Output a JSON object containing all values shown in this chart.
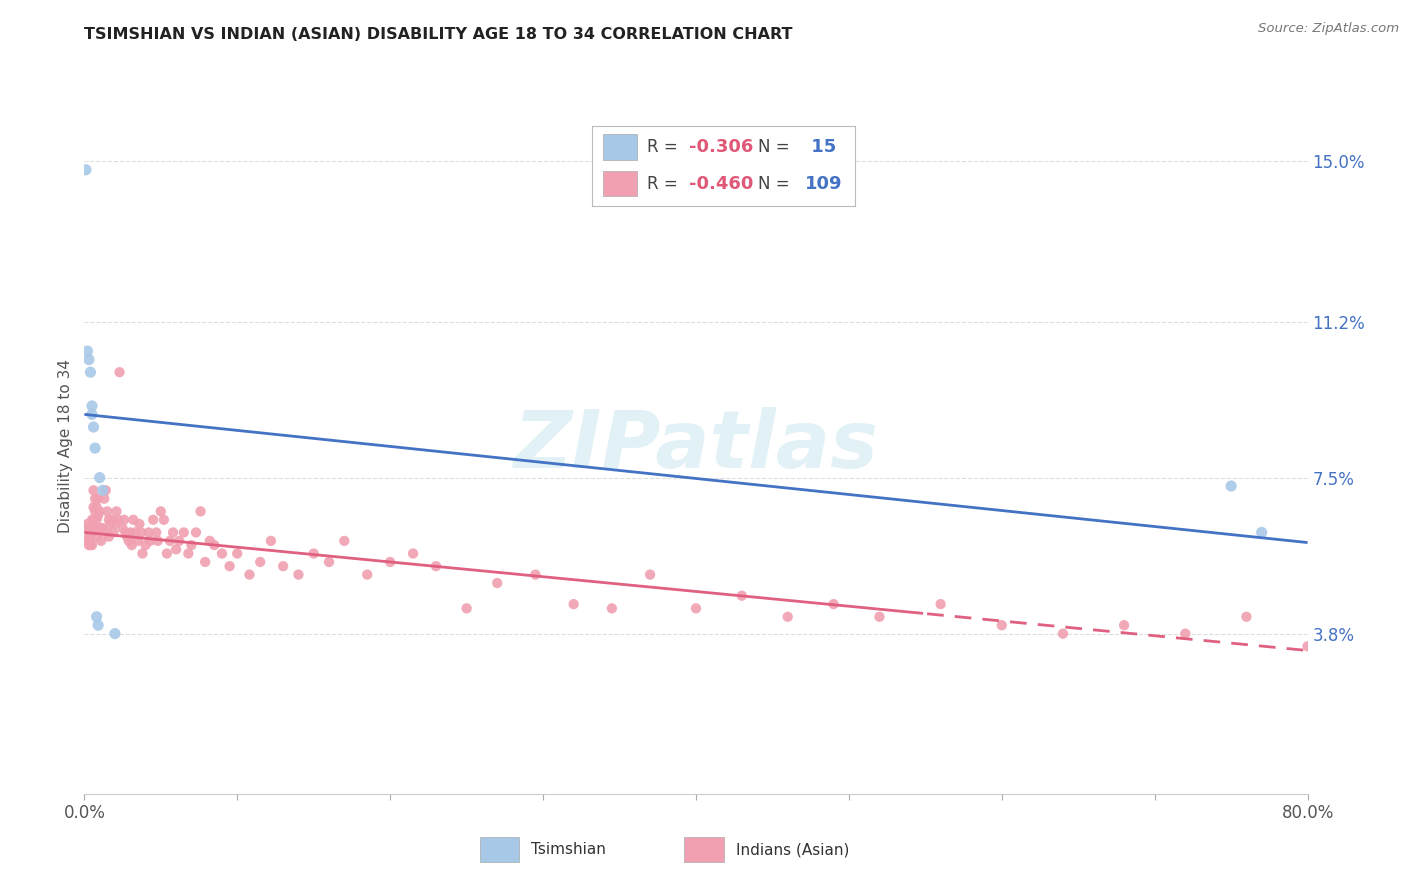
{
  "title": "TSIMSHIAN VS INDIAN (ASIAN) DISABILITY AGE 18 TO 34 CORRELATION CHART",
  "source": "Source: ZipAtlas.com",
  "ylabel": "Disability Age 18 to 34",
  "xmin": 0.0,
  "xmax": 0.8,
  "ymin": 0.0,
  "ymax": 0.165,
  "yticks": [
    0.038,
    0.075,
    0.112,
    0.15
  ],
  "ytick_labels": [
    "3.8%",
    "7.5%",
    "11.2%",
    "15.0%"
  ],
  "xticks": [
    0.0,
    0.1,
    0.2,
    0.3,
    0.4,
    0.5,
    0.6,
    0.7,
    0.8
  ],
  "xtick_labels": [
    "0.0%",
    "",
    "",
    "",
    "",
    "",
    "",
    "",
    "80.0%"
  ],
  "legend_r1": "-0.306",
  "legend_n1": "15",
  "legend_r2": "-0.460",
  "legend_n2": "109",
  "color_tsimshian": "#a8c8e8",
  "color_indian": "#f0a0b0",
  "color_line_tsimshian": "#4472c4",
  "color_line_indian": "#e06080",
  "watermark": "ZIPatlas",
  "tsimshian_x": [
    0.001,
    0.002,
    0.003,
    0.004,
    0.005,
    0.005,
    0.006,
    0.007,
    0.008,
    0.009,
    0.01,
    0.012,
    0.02,
    0.75,
    0.77
  ],
  "tsimshian_y": [
    0.148,
    0.105,
    0.103,
    0.1,
    0.092,
    0.09,
    0.087,
    0.082,
    0.042,
    0.04,
    0.075,
    0.072,
    0.038,
    0.073,
    0.062
  ],
  "indian_x": [
    0.001,
    0.002,
    0.002,
    0.003,
    0.003,
    0.003,
    0.004,
    0.004,
    0.004,
    0.005,
    0.005,
    0.005,
    0.006,
    0.006,
    0.006,
    0.007,
    0.007,
    0.007,
    0.008,
    0.008,
    0.008,
    0.009,
    0.009,
    0.01,
    0.01,
    0.011,
    0.011,
    0.012,
    0.013,
    0.014,
    0.015,
    0.015,
    0.016,
    0.016,
    0.017,
    0.018,
    0.019,
    0.02,
    0.021,
    0.022,
    0.023,
    0.025,
    0.026,
    0.027,
    0.028,
    0.029,
    0.03,
    0.031,
    0.032,
    0.033,
    0.035,
    0.036,
    0.037,
    0.038,
    0.04,
    0.042,
    0.043,
    0.045,
    0.047,
    0.048,
    0.05,
    0.052,
    0.054,
    0.056,
    0.058,
    0.06,
    0.062,
    0.065,
    0.068,
    0.07,
    0.073,
    0.076,
    0.079,
    0.082,
    0.085,
    0.09,
    0.095,
    0.1,
    0.108,
    0.115,
    0.122,
    0.13,
    0.14,
    0.15,
    0.16,
    0.17,
    0.185,
    0.2,
    0.215,
    0.23,
    0.25,
    0.27,
    0.295,
    0.32,
    0.345,
    0.37,
    0.4,
    0.43,
    0.46,
    0.49,
    0.52,
    0.56,
    0.6,
    0.64,
    0.68,
    0.72,
    0.76,
    0.8,
    0.84
  ],
  "indian_y": [
    0.063,
    0.064,
    0.06,
    0.063,
    0.061,
    0.059,
    0.063,
    0.061,
    0.059,
    0.065,
    0.062,
    0.059,
    0.072,
    0.068,
    0.065,
    0.07,
    0.067,
    0.063,
    0.068,
    0.065,
    0.061,
    0.07,
    0.066,
    0.067,
    0.063,
    0.063,
    0.06,
    0.063,
    0.07,
    0.072,
    0.067,
    0.062,
    0.065,
    0.061,
    0.064,
    0.065,
    0.062,
    0.064,
    0.067,
    0.065,
    0.1,
    0.063,
    0.065,
    0.062,
    0.061,
    0.06,
    0.062,
    0.059,
    0.065,
    0.062,
    0.06,
    0.064,
    0.062,
    0.057,
    0.059,
    0.062,
    0.06,
    0.065,
    0.062,
    0.06,
    0.067,
    0.065,
    0.057,
    0.06,
    0.062,
    0.058,
    0.06,
    0.062,
    0.057,
    0.059,
    0.062,
    0.067,
    0.055,
    0.06,
    0.059,
    0.057,
    0.054,
    0.057,
    0.052,
    0.055,
    0.06,
    0.054,
    0.052,
    0.057,
    0.055,
    0.06,
    0.052,
    0.055,
    0.057,
    0.054,
    0.044,
    0.05,
    0.052,
    0.045,
    0.044,
    0.052,
    0.044,
    0.047,
    0.042,
    0.045,
    0.042,
    0.045,
    0.04,
    0.038,
    0.04,
    0.038,
    0.042,
    0.035,
    0.033
  ],
  "grid_color": "#dddddd",
  "bg_color": "#ffffff",
  "tsimshian_label": "Tsimshian",
  "indian_label": "Indians (Asian)"
}
